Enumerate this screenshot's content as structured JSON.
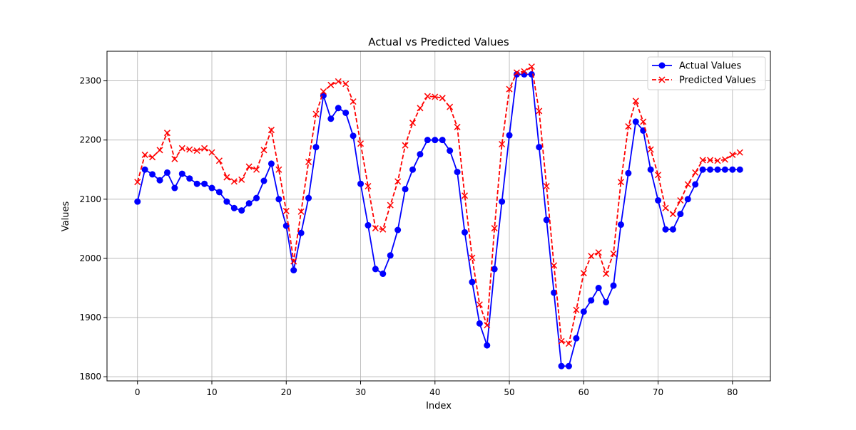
{
  "chart_data": {
    "type": "line",
    "title": "Actual vs Predicted Values",
    "xlabel": "Index",
    "ylabel": "Values",
    "xlim": [
      -4.1,
      85.1
    ],
    "ylim": [
      1793,
      2350
    ],
    "xticks": [
      0,
      10,
      20,
      30,
      40,
      50,
      60,
      70,
      80
    ],
    "yticks": [
      1800,
      1900,
      2000,
      2100,
      2200,
      2300
    ],
    "grid": true,
    "legend": "top-right",
    "series": [
      {
        "name": "Actual Values",
        "color": "#0000ff",
        "marker": "circle",
        "linestyle": "solid",
        "x": [
          0,
          1,
          2,
          3,
          4,
          5,
          6,
          7,
          8,
          9,
          10,
          11,
          12,
          13,
          14,
          15,
          16,
          17,
          18,
          19,
          20,
          21,
          22,
          23,
          24,
          25,
          26,
          27,
          28,
          29,
          30,
          31,
          32,
          33,
          34,
          35,
          36,
          37,
          38,
          39,
          40,
          41,
          42,
          43,
          44,
          45,
          46,
          47,
          48,
          49,
          50,
          51,
          52,
          53,
          54,
          55,
          56,
          57,
          58,
          59,
          60,
          61,
          62,
          63,
          64,
          65,
          66,
          67,
          68,
          69,
          70,
          71,
          72,
          73,
          74,
          75,
          76,
          77,
          78,
          79,
          80,
          81
        ],
        "values": [
          2096,
          2150,
          2142,
          2132,
          2145,
          2119,
          2143,
          2135,
          2126,
          2126,
          2119,
          2112,
          2096,
          2085,
          2081,
          2093,
          2102,
          2131,
          2160,
          2100,
          2055,
          1980,
          2043,
          2102,
          2188,
          2275,
          2236,
          2254,
          2246,
          2207,
          2126,
          2056,
          1982,
          1974,
          2005,
          2048,
          2117,
          2150,
          2176,
          2200,
          2200,
          2200,
          2182,
          2146,
          2044,
          1960,
          1890,
          1853,
          1982,
          2096,
          2208,
          2311,
          2311,
          2311,
          2188,
          2065,
          1942,
          1818,
          1818,
          1865,
          1910,
          1929,
          1950,
          1926,
          1954,
          2057,
          2144,
          2231,
          2216,
          2150,
          2098,
          2049,
          2049,
          2075,
          2100,
          2125,
          2150,
          2150,
          2150,
          2150,
          2150,
          2150
        ]
      },
      {
        "name": "Predicted Values",
        "color": "#ff0000",
        "marker": "x",
        "linestyle": "dashed",
        "x": [
          0,
          1,
          2,
          3,
          4,
          5,
          6,
          7,
          8,
          9,
          10,
          11,
          12,
          13,
          14,
          15,
          16,
          17,
          18,
          19,
          20,
          21,
          22,
          23,
          24,
          25,
          26,
          27,
          28,
          29,
          30,
          31,
          32,
          33,
          34,
          35,
          36,
          37,
          38,
          39,
          40,
          41,
          42,
          43,
          44,
          45,
          46,
          47,
          48,
          49,
          50,
          51,
          52,
          53,
          54,
          55,
          56,
          57,
          58,
          59,
          60,
          61,
          62,
          63,
          64,
          65,
          66,
          67,
          68,
          69,
          70,
          71,
          72,
          73,
          74,
          75,
          76,
          77,
          78,
          79,
          80,
          81
        ],
        "values": [
          2129,
          2175,
          2171,
          2183,
          2212,
          2168,
          2186,
          2184,
          2182,
          2186,
          2179,
          2165,
          2137,
          2130,
          2133,
          2155,
          2150,
          2183,
          2217,
          2150,
          2080,
          1995,
          2079,
          2163,
          2244,
          2282,
          2293,
          2299,
          2295,
          2265,
          2194,
          2122,
          2051,
          2049,
          2090,
          2130,
          2191,
          2229,
          2254,
          2274,
          2273,
          2271,
          2256,
          2222,
          2106,
          2001,
          1922,
          1887,
          2051,
          2193,
          2286,
          2314,
          2316,
          2324,
          2249,
          2122,
          1988,
          1860,
          1856,
          1913,
          1975,
          2004,
          2010,
          1974,
          2008,
          2129,
          2223,
          2266,
          2231,
          2184,
          2141,
          2085,
          2075,
          2098,
          2125,
          2145,
          2166,
          2166,
          2165,
          2167,
          2175,
          2179
        ]
      }
    ]
  }
}
